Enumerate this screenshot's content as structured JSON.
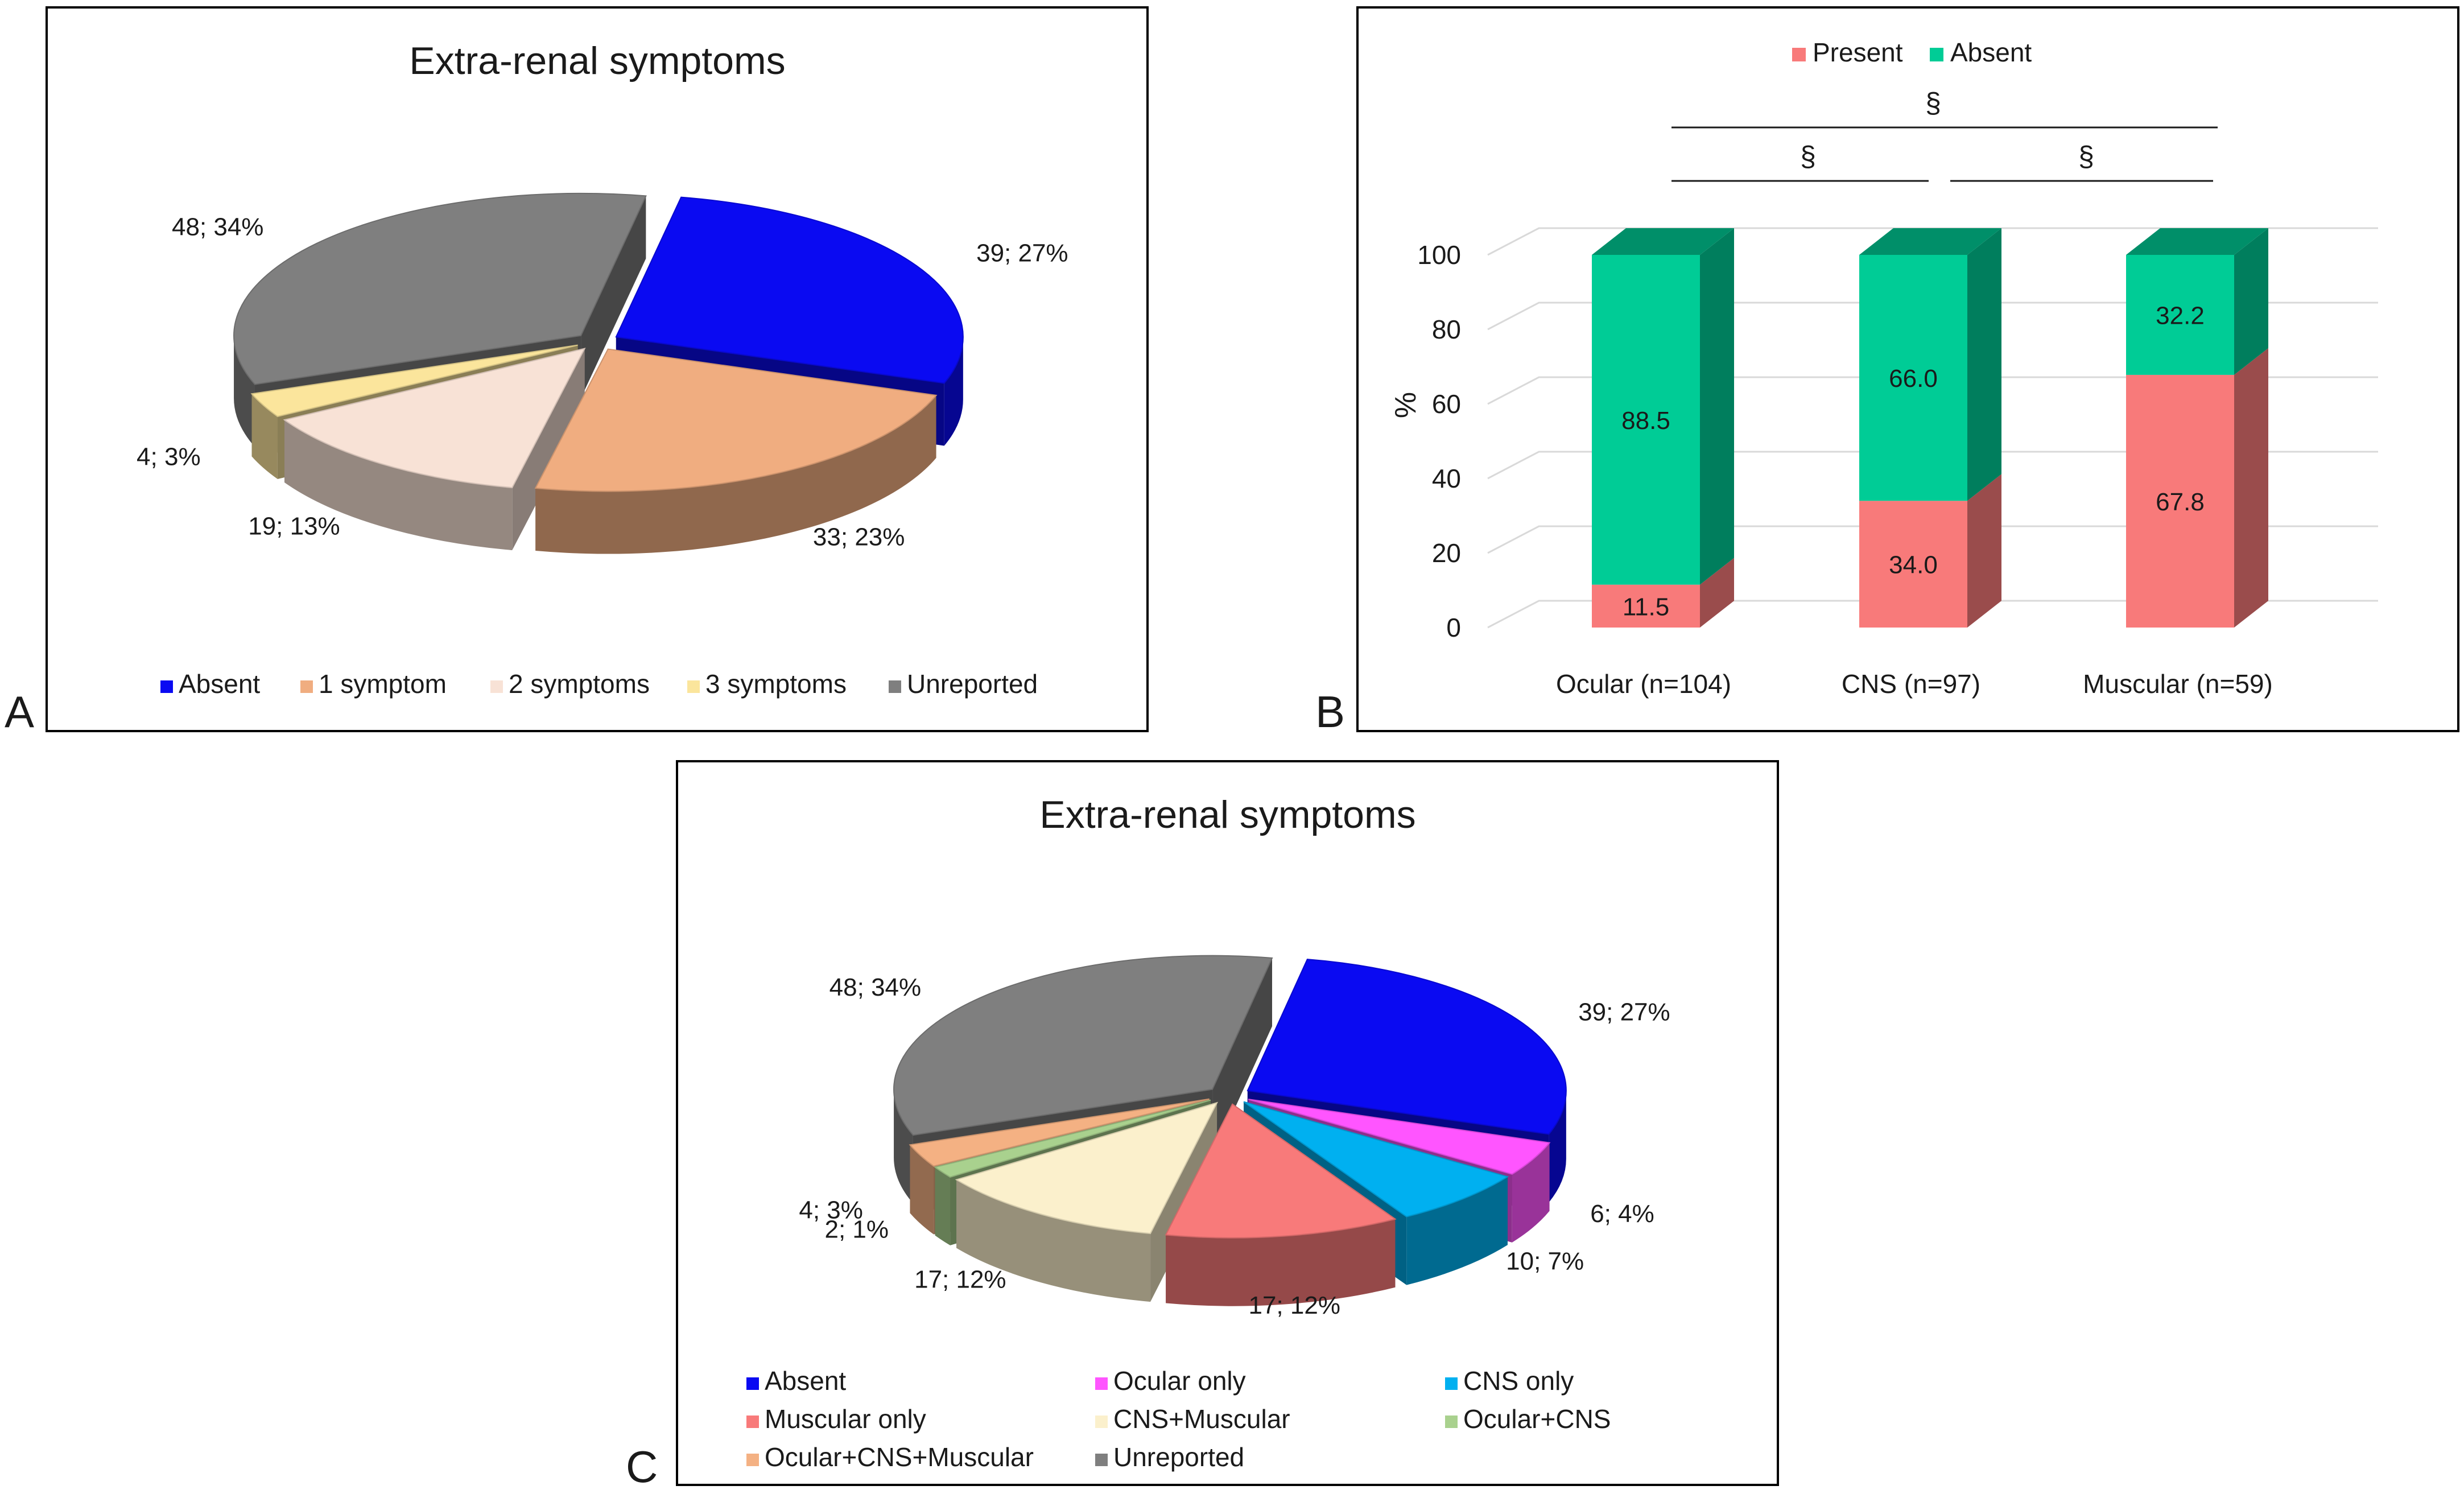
{
  "panel_letters": {
    "a": "A",
    "b": "B",
    "c": "C"
  },
  "chart_data": [
    {
      "panel": "A",
      "type": "pie",
      "title": "Extra-renal symptoms",
      "labels": [
        "Absent",
        "1 symptom",
        "2 symptoms",
        "3 symptoms",
        "Unreported"
      ],
      "values": [
        39,
        33,
        19,
        4,
        48
      ],
      "percents": [
        27,
        23,
        13,
        3,
        34
      ],
      "data_labels": [
        "39; 27%",
        "33; 23%",
        "19; 13%",
        "4; 3%",
        "48; 34%"
      ],
      "colors": [
        "#0a0af2",
        "#f0ad80",
        "#f8e2d6",
        "#fbe59c",
        "#7f7f7f"
      ],
      "exploded": true,
      "legend_position": "bottom"
    },
    {
      "panel": "B",
      "type": "bar",
      "stacked": true,
      "categories": [
        "Ocular (n=104)",
        "CNS (n=97)",
        "Muscular (n=59)"
      ],
      "series": [
        {
          "name": "Present",
          "values": [
            11.5,
            34.0,
            67.8
          ],
          "labels": [
            "11.5",
            "34.0",
            "67.8"
          ],
          "color": "#f87a7a"
        },
        {
          "name": "Absent",
          "values": [
            88.5,
            66.0,
            32.2
          ],
          "labels": [
            "88.5",
            "66.0",
            "32.2"
          ],
          "color": "#00cc96"
        }
      ],
      "xlabel": "",
      "ylabel": "%",
      "ylim": [
        0,
        100
      ],
      "yticks": [
        "0",
        "20",
        "40",
        "60",
        "80",
        "100"
      ],
      "grid": true,
      "legend_position": "top",
      "significance": [
        {
          "from": "Ocular (n=104)",
          "to": "CNS (n=97)",
          "symbol": "§"
        },
        {
          "from": "CNS (n=97)",
          "to": "Muscular (n=59)",
          "symbol": "§"
        },
        {
          "from": "Ocular (n=104)",
          "to": "Muscular (n=59)",
          "symbol": "§"
        }
      ]
    },
    {
      "panel": "C",
      "type": "pie",
      "title": "Extra-renal symptoms",
      "labels": [
        "Absent",
        "Ocular only",
        "CNS only",
        "Muscular only",
        "CNS+Muscular",
        "Ocular+CNS",
        "Ocular+CNS+Muscular",
        "Unreported"
      ],
      "values": [
        39,
        6,
        10,
        17,
        17,
        2,
        4,
        48
      ],
      "percents": [
        27,
        4,
        7,
        12,
        12,
        1,
        3,
        34
      ],
      "data_labels": [
        "39; 27%",
        "6; 4%",
        "10; 7%",
        "17; 12%",
        "17; 12%",
        "2; 1%",
        "4; 3%",
        "48; 34%"
      ],
      "colors": [
        "#0a0af2",
        "#ff55ff",
        "#00b0f0",
        "#f87a7a",
        "#fbf0cc",
        "#a9d18e",
        "#f4b183",
        "#7f7f7f"
      ],
      "exploded": true,
      "legend_position": "bottom"
    }
  ]
}
